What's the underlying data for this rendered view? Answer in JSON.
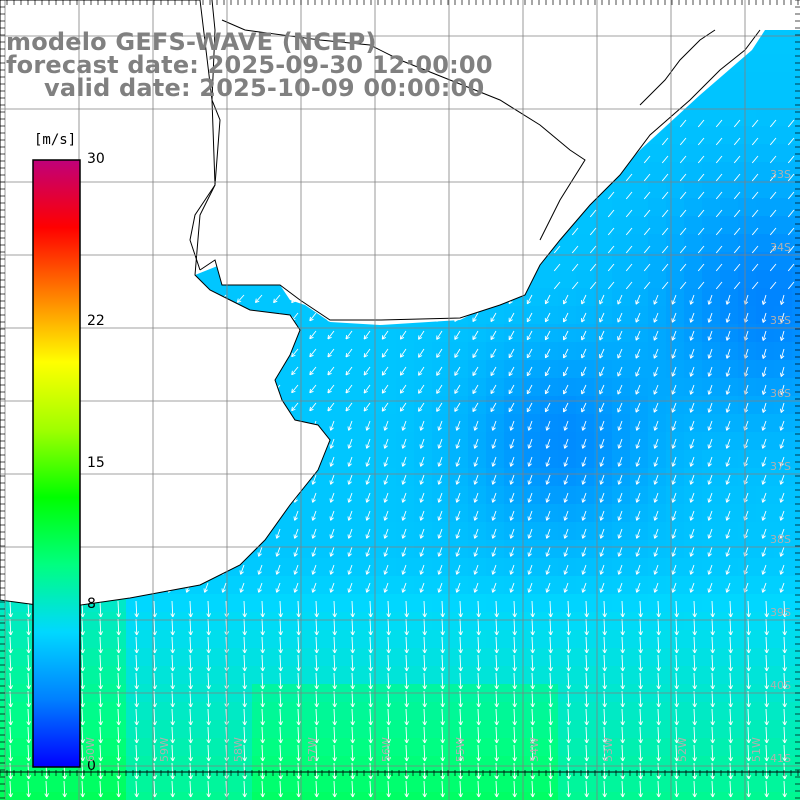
{
  "titles": {
    "line1": "modelo GEFS-WAVE (NCEP)",
    "line2": "forecast date: 2025-09-30 12:00:00",
    "line3": "valid date: 2025-10-09 00:00:00"
  },
  "colorbar": {
    "unit": "[m/s]",
    "ticks": [
      {
        "label": "30",
        "value": 30
      },
      {
        "label": "22",
        "value": 22
      },
      {
        "label": "15",
        "value": 15
      },
      {
        "label": "8",
        "value": 8
      },
      {
        "label": "0",
        "value": 0
      }
    ],
    "range": [
      0,
      30
    ],
    "stops": [
      "#0000ff",
      "#0080ff",
      "#00d8ff",
      "#00ff80",
      "#00ff00",
      "#a0ff00",
      "#ffff00",
      "#ff8000",
      "#ff0000",
      "#c0007a"
    ]
  },
  "grid": {
    "lat_labels": [
      "33S",
      "34S",
      "35S",
      "36S",
      "37S",
      "38S",
      "39S",
      "40S",
      "41S"
    ],
    "lon_labels": [
      "60W",
      "59W",
      "58W",
      "57W",
      "56W",
      "55W",
      "54W",
      "53W",
      "52W",
      "51W"
    ]
  },
  "colors": {
    "field_low": "#0040ff",
    "field_mid": "#00b8ff",
    "field_high": "#00ff90",
    "land": "#ffffff",
    "coast": "#000000",
    "grid": "#808080",
    "arrows": "#ffffff"
  }
}
